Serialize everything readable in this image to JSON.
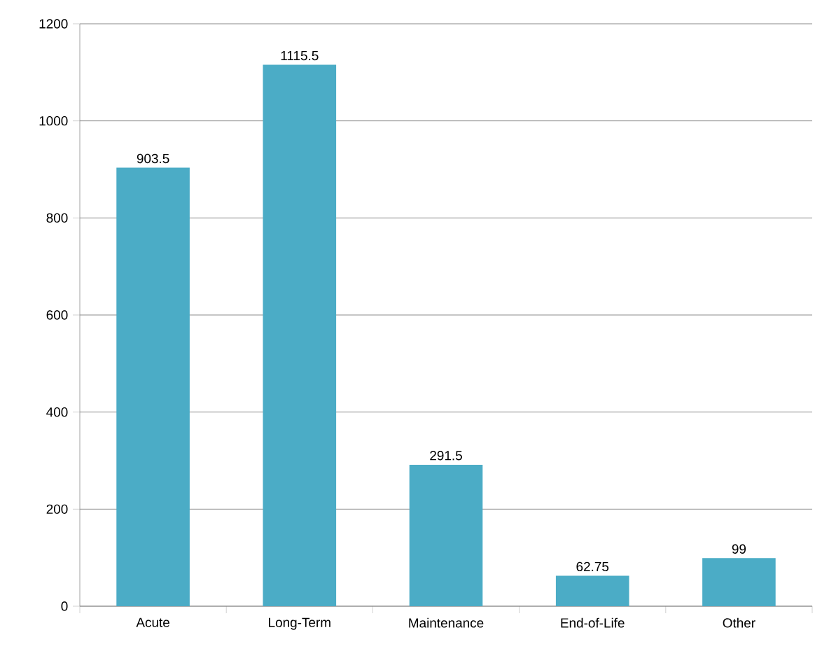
{
  "chart_data": {
    "type": "bar",
    "categories": [
      "Acute",
      "Long-Term",
      "Maintenance",
      "End-of-Life",
      "Other"
    ],
    "values": [
      903.5,
      1115.5,
      291.5,
      62.75,
      99
    ],
    "value_labels": [
      "903.5",
      "1115.5",
      "291.5",
      "62.75",
      "99"
    ],
    "color": "#4bacc6",
    "ylim": [
      0,
      1200
    ],
    "yticks": [
      0,
      200,
      400,
      600,
      800,
      1000,
      1200
    ],
    "grid": "y"
  }
}
